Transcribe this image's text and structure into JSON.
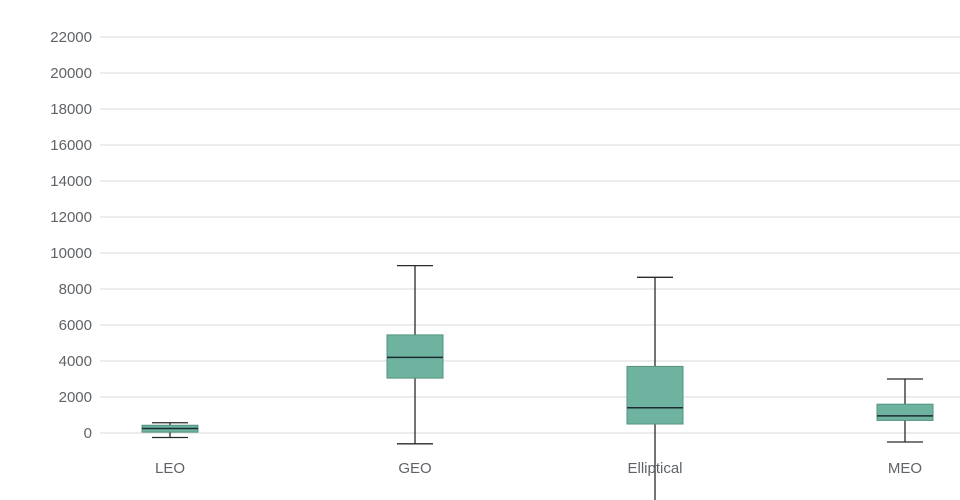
{
  "chart_data": {
    "type": "boxplot",
    "title": "",
    "xlabel": "",
    "ylabel": "",
    "categories": [
      "LEO",
      "GEO",
      "Elliptical",
      "MEO"
    ],
    "series": [
      {
        "name": "LEO",
        "low": -250,
        "q1": 50,
        "median": 250,
        "q3": 430,
        "high": 570
      },
      {
        "name": "GEO",
        "low": -600,
        "q1": 3050,
        "median": 4200,
        "q3": 5450,
        "high": 9300
      },
      {
        "name": "Elliptical",
        "low": -4500,
        "q1": 500,
        "median": 1400,
        "q3": 3700,
        "high": 8650
      },
      {
        "name": "MEO",
        "low": -500,
        "q1": 700,
        "median": 950,
        "q3": 1600,
        "high": 3000
      }
    ],
    "yticks": [
      0,
      2000,
      4000,
      6000,
      8000,
      10000,
      12000,
      14000,
      16000,
      18000,
      20000,
      22000
    ],
    "ylim": [
      0,
      22000
    ],
    "grid": true,
    "legend": "none",
    "colors": {
      "box_fill": "#6db3a0",
      "box_stroke": "#55917f",
      "median_line": "#1e2a33",
      "whisker": "#2a2a2a",
      "gridline": "#d9d9d9",
      "tick_label": "#5f6368",
      "background": "#ffffff"
    }
  }
}
